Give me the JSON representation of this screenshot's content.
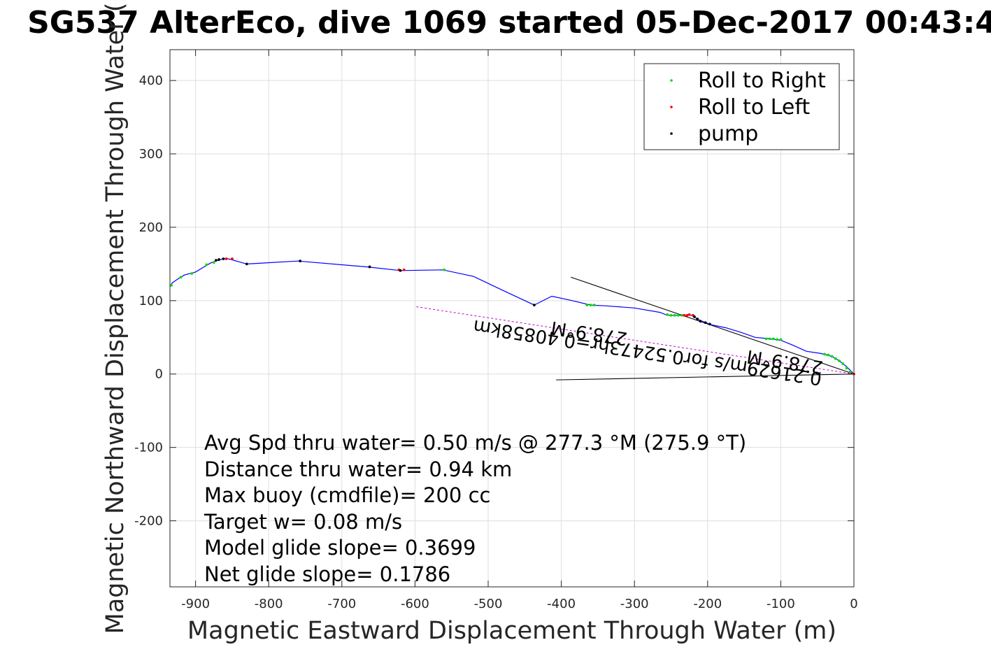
{
  "chart_data": {
    "type": "line",
    "title": "SG537 AlterEco, dive 1069 started 05-Dec-2017 00:43:4",
    "xlabel": "Magnetic Eastward Displacement Through Water (m)",
    "ylabel": "Magnetic Northward Displacement Through Water (",
    "xlim": [
      -935,
      0
    ],
    "ylim": [
      -290,
      442
    ],
    "x_ticks": [
      -900,
      -800,
      -700,
      -600,
      -500,
      -400,
      -300,
      -200,
      -100,
      0
    ],
    "y_ticks": [
      -200,
      -100,
      0,
      100,
      200,
      300,
      400
    ],
    "x_tick_labels": [
      "-900",
      "-800",
      "-700",
      "-600",
      "-500",
      "-400",
      "-300",
      "-200",
      "-100",
      "0"
    ],
    "y_tick_labels": [
      "-200",
      "-100",
      "0",
      "100",
      "200",
      "300",
      "400"
    ],
    "grid": true,
    "legend_position": "top-right",
    "colors": {
      "track": "#0000ff",
      "roll_right": "#00dd00",
      "roll_left": "#ff0000",
      "pump": "#000000",
      "heading_line": "#000000",
      "glide_line": "#cc00cc"
    },
    "legend": [
      {
        "label": "Roll to Right",
        "color": "#00dd00"
      },
      {
        "label": "Roll to Left",
        "color": "#ff0000"
      },
      {
        "label": "pump",
        "color": "#000000"
      }
    ],
    "series": [
      {
        "name": "Track",
        "points": [
          [
            0,
            0
          ],
          [
            -10,
            10
          ],
          [
            -20,
            18
          ],
          [
            -30,
            24
          ],
          [
            -45,
            28
          ],
          [
            -65,
            31
          ],
          [
            -85,
            40
          ],
          [
            -100,
            46
          ],
          [
            -115,
            48
          ],
          [
            -135,
            50
          ],
          [
            -155,
            57
          ],
          [
            -175,
            63
          ],
          [
            -195,
            67
          ],
          [
            -210,
            73
          ],
          [
            -222,
            80
          ],
          [
            -238,
            80
          ],
          [
            -255,
            80
          ],
          [
            -265,
            84
          ],
          [
            -300,
            90
          ],
          [
            -340,
            93
          ],
          [
            -360,
            94
          ],
          [
            -385,
            100
          ],
          [
            -413,
            106
          ],
          [
            -437,
            94
          ],
          [
            -480,
            114
          ],
          [
            -520,
            133
          ],
          [
            -562,
            142
          ],
          [
            -620,
            141
          ],
          [
            -665,
            146
          ],
          [
            -760,
            154
          ],
          [
            -830,
            150
          ],
          [
            -855,
            157
          ],
          [
            -862,
            157
          ],
          [
            -873,
            154
          ],
          [
            -880,
            151
          ],
          [
            -900,
            139
          ],
          [
            -915,
            135
          ],
          [
            -925,
            129
          ],
          [
            -932,
            124
          ],
          [
            -935,
            119
          ]
        ]
      },
      {
        "name": "Roll to Right",
        "points": [
          [
            -5,
            3
          ],
          [
            -10,
            8
          ],
          [
            -15,
            14
          ],
          [
            -20,
            18
          ],
          [
            -25,
            21
          ],
          [
            -30,
            24
          ],
          [
            -35,
            26
          ],
          [
            -40,
            27
          ],
          [
            -100,
            47
          ],
          [
            -105,
            47
          ],
          [
            -110,
            48
          ],
          [
            -115,
            48
          ],
          [
            -120,
            48
          ],
          [
            -235,
            80
          ],
          [
            -240,
            80
          ],
          [
            -245,
            80
          ],
          [
            -250,
            80
          ],
          [
            -255,
            81
          ],
          [
            -355,
            94
          ],
          [
            -360,
            94
          ],
          [
            -365,
            94
          ],
          [
            -560,
            142
          ],
          [
            -875,
            152
          ],
          [
            -885,
            149
          ],
          [
            -905,
            137
          ],
          [
            -920,
            132
          ],
          [
            -933,
            121
          ]
        ]
      },
      {
        "name": "Roll to Left",
        "points": [
          [
            0,
            0
          ],
          [
            -220,
            80
          ],
          [
            -225,
            81
          ],
          [
            -228,
            80
          ],
          [
            -232,
            80
          ],
          [
            -615,
            142
          ],
          [
            -622,
            142
          ],
          [
            -662,
            146
          ],
          [
            -858,
            157
          ],
          [
            -850,
            157
          ]
        ]
      },
      {
        "name": "pump",
        "points": [
          [
            -197,
            68
          ],
          [
            -203,
            70
          ],
          [
            -210,
            72
          ],
          [
            -214,
            75
          ],
          [
            -218,
            78
          ],
          [
            -437,
            94
          ],
          [
            -757,
            154
          ],
          [
            -830,
            150
          ],
          [
            -620,
            141
          ],
          [
            -662,
            146
          ],
          [
            -862,
            157
          ],
          [
            -868,
            156
          ],
          [
            -872,
            155
          ]
        ]
      }
    ],
    "heading_lines": [
      {
        "from": [
          0,
          0
        ],
        "to": [
          -387,
          132
        ]
      },
      {
        "from": [
          0,
          0
        ],
        "to": [
          -407,
          -8
        ]
      }
    ],
    "glide_line": {
      "from": [
        0,
        0
      ],
      "to": [
        -600,
        92
      ]
    },
    "rotated_annotations": [
      {
        "text": "0.21629m/s for0.52473hr=0.40858km",
        "anchor": [
          -42,
          0
        ],
        "angle_deg": 8.6
      },
      {
        "text": "278.9°M",
        "anchor": [
          -42,
          0
        ],
        "angle_deg": 8.6
      },
      {
        "text": "278.9°M",
        "anchor": [
          -42,
          0
        ],
        "angle_deg": 8.6
      }
    ],
    "stats": [
      "Avg Spd thru water=  0.50 m/s @ 277.3 °M (275.9 °T)",
      "Distance thru water=  0.94 km",
      "Max buoy (cmdfile)= 200 cc",
      "Target w= 0.08 m/s",
      "Model glide slope= 0.3699",
      "Net glide slope= 0.1786"
    ]
  }
}
